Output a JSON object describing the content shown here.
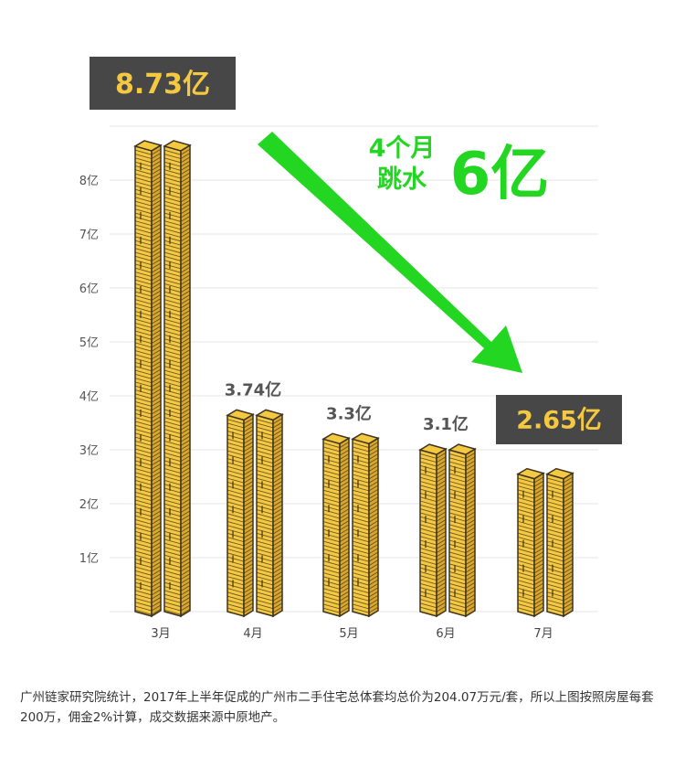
{
  "chart_data": {
    "type": "bar",
    "categories": [
      "3月",
      "4月",
      "5月",
      "6月",
      "7月"
    ],
    "values": [
      8.73,
      3.74,
      3.3,
      3.1,
      2.65
    ],
    "value_labels": [
      "8.73亿",
      "3.74亿",
      "3.3亿",
      "3.1亿",
      "2.65亿"
    ],
    "highlighted": [
      0,
      4
    ],
    "y_ticks": [
      "1亿",
      "2亿",
      "3亿",
      "4亿",
      "5亿",
      "6亿",
      "7亿",
      "8亿"
    ],
    "ylim": [
      0,
      9
    ],
    "grid": true,
    "annotation": {
      "line1": "4个月",
      "line2": "跳水",
      "big": "6亿"
    }
  },
  "colors": {
    "gold_top": "#f5c842",
    "gold_side": "#d9a72b",
    "gold_edge": "#3d3420",
    "dark_box": "#474747",
    "arrow": "#22d622",
    "grid": "#e6e6e6"
  },
  "footnote": "广州链家研究院统计，2017年上半年促成的广州市二手住宅总体套均总价为204.07万元/套，所以上图按照房屋每套200万，佣金2%计算，成交数据来源中原地产。"
}
